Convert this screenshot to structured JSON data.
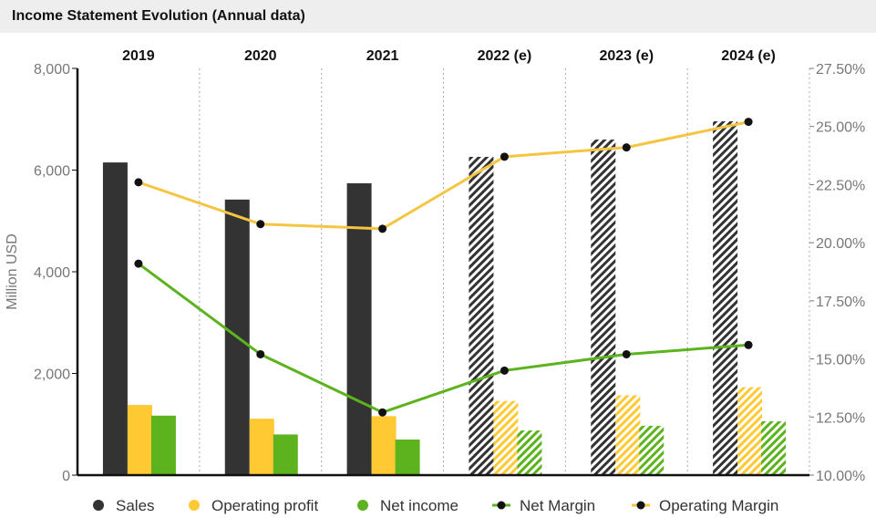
{
  "chart_data": {
    "type": "bar",
    "title": "Income Statement Evolution (Annual data)",
    "categories": [
      "2019",
      "2020",
      "2021",
      "2022 (e)",
      "2023 (e)",
      "2024 (e)"
    ],
    "estimated_from_index": 3,
    "ylabel": "Million USD",
    "ylim": [
      0,
      8000
    ],
    "yticks": [
      0,
      2000,
      4000,
      6000,
      8000
    ],
    "ytick_labels": [
      "0",
      "2,000",
      "4,000",
      "6,000",
      "8,000"
    ],
    "y2lim": [
      10,
      27.5
    ],
    "y2ticks": [
      10,
      12.5,
      15,
      17.5,
      20,
      22.5,
      25,
      27.5
    ],
    "y2tick_labels": [
      "10.00%",
      "12.50%",
      "15.00%",
      "17.50%",
      "20.00%",
      "22.50%",
      "25.00%",
      "27.50%"
    ],
    "grid": "vertical dotted separators",
    "legend_position": "bottom",
    "bar_series": [
      {
        "name": "Sales",
        "color": "#333333",
        "values": [
          6150,
          5420,
          5740,
          6260,
          6600,
          6960
        ]
      },
      {
        "name": "Operating profit",
        "color": "#ffc933",
        "values": [
          1380,
          1110,
          1160,
          1460,
          1570,
          1730
        ]
      },
      {
        "name": "Net income",
        "color": "#5cb31e",
        "values": [
          1170,
          800,
          700,
          880,
          970,
          1060
        ]
      }
    ],
    "line_series": [
      {
        "name": "Net Margin",
        "color": "#5cb31e",
        "axis": "right",
        "values": [
          19.1,
          15.2,
          12.7,
          14.5,
          15.2,
          15.6
        ]
      },
      {
        "name": "Operating Margin",
        "color": "#f5c542",
        "axis": "right",
        "values": [
          22.6,
          20.8,
          20.6,
          23.7,
          24.1,
          25.2
        ]
      }
    ]
  },
  "legend": [
    {
      "label": "Sales",
      "kind": "dot",
      "color": "#333333"
    },
    {
      "label": "Operating profit",
      "kind": "dot",
      "color": "#ffc933"
    },
    {
      "label": "Net income",
      "kind": "dot",
      "color": "#5cb31e"
    },
    {
      "label": "Net Margin",
      "kind": "line",
      "color": "#5cb31e"
    },
    {
      "label": "Operating Margin",
      "kind": "line",
      "color": "#f5c542"
    }
  ]
}
